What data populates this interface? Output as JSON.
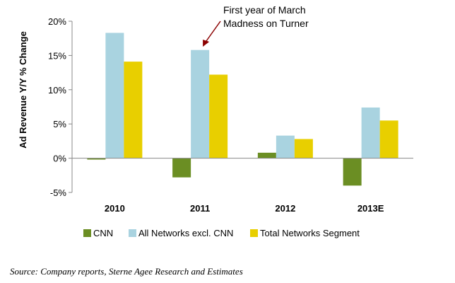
{
  "chart_data": {
    "type": "bar",
    "title": "",
    "xlabel": "",
    "ylabel": "Ad Revenue Y/Y % Change",
    "categories": [
      "2010",
      "2011",
      "2012",
      "2013E"
    ],
    "series": [
      {
        "name": "CNN",
        "color": "#6b8e23",
        "values": [
          -0.2,
          -2.8,
          0.8,
          -4.0
        ]
      },
      {
        "name": "All Networks excl. CNN",
        "color": "#a9d3e0",
        "values": [
          18.3,
          15.8,
          3.3,
          7.4
        ]
      },
      {
        "name": "Total Networks Segment",
        "color": "#e8cf00",
        "values": [
          14.1,
          12.2,
          2.8,
          5.5
        ]
      }
    ],
    "ylim": [
      -5,
      20
    ],
    "yticks": [
      20,
      15,
      10,
      5,
      0,
      -5
    ],
    "ytick_labels": [
      "20%",
      "15%",
      "10%",
      "5%",
      "0%",
      "-5%"
    ],
    "grid": false,
    "legend_position": "bottom",
    "annotation": {
      "lines": [
        "First year of March",
        "Madness on Turner"
      ],
      "category": "2011",
      "arrow_color": "#8b0000"
    }
  },
  "source_note": "Source: Company reports, Sterne Agee Research and Estimates"
}
